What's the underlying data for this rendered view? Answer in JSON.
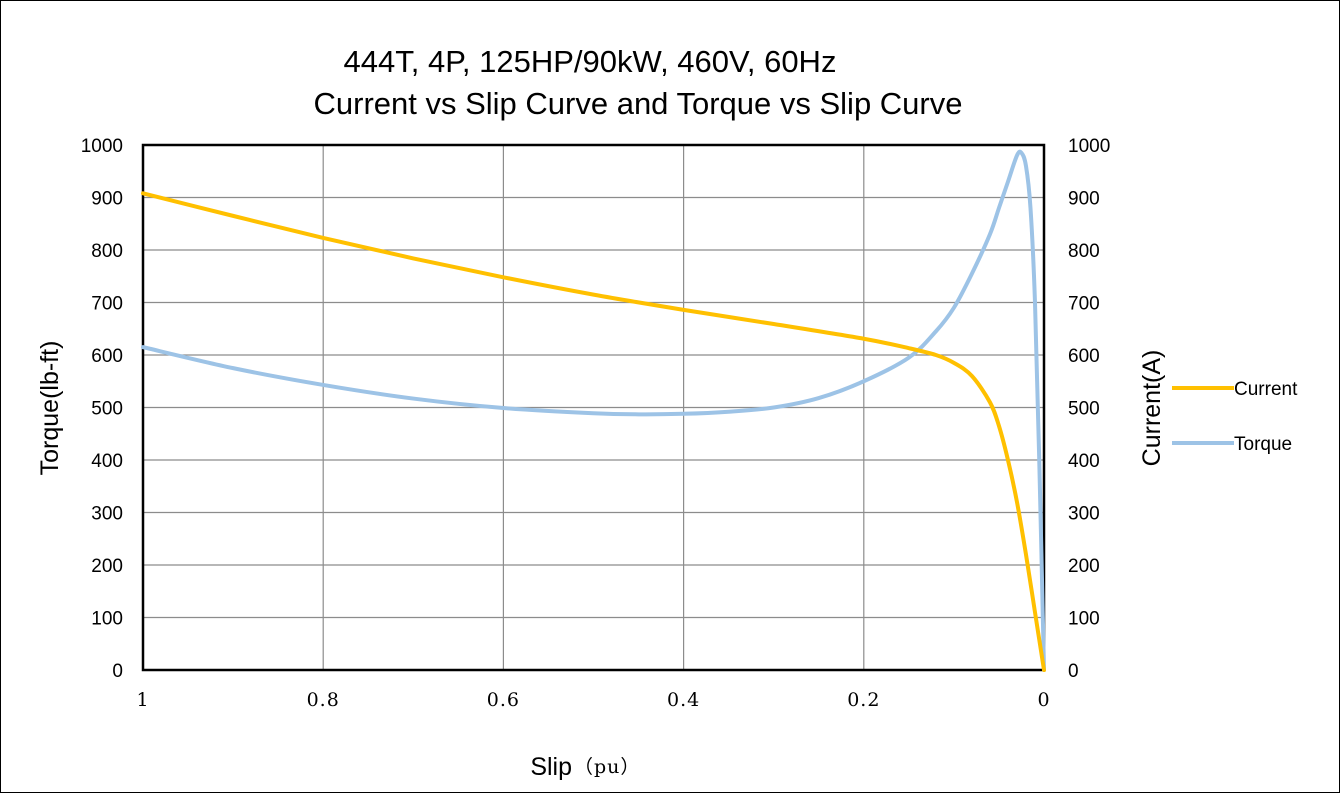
{
  "chart_data": {
    "type": "line",
    "title": "444T, 4P, 125HP/90kW, 460V, 60Hz",
    "subtitle": "Current vs Slip Curve and Torque vs Slip Curve",
    "xlabel": "Slip",
    "xlabel_unit": "（pu）",
    "ylabel_left": "Torque(lb-ft)",
    "ylabel_right": "Current(A)",
    "x_reversed": true,
    "xlim": [
      0,
      1
    ],
    "ylim_left": [
      0,
      1000
    ],
    "ylim_right": [
      0,
      1000
    ],
    "x_ticks": [
      "1",
      "0.8",
      "0.6",
      "0.4",
      "0.2",
      "0"
    ],
    "x_tick_values": [
      1,
      0.8,
      0.6,
      0.4,
      0.2,
      0
    ],
    "y_ticks": [
      "0",
      "100",
      "200",
      "300",
      "400",
      "500",
      "600",
      "700",
      "800",
      "900",
      "1000"
    ],
    "y_tick_values": [
      0,
      100,
      200,
      300,
      400,
      500,
      600,
      700,
      800,
      900,
      1000
    ],
    "grid": true,
    "legend_position": "right",
    "series": [
      {
        "name": "Current",
        "axis": "right",
        "color": "#ffc000",
        "x": [
          1.0,
          0.9,
          0.8,
          0.7,
          0.6,
          0.5,
          0.4,
          0.3,
          0.2,
          0.15,
          0.12,
          0.1,
          0.08,
          0.06,
          0.05,
          0.04,
          0.03,
          0.02,
          0.01,
          0.0
        ],
        "y": [
          908,
          865,
          823,
          784,
          748,
          715,
          686,
          659,
          631,
          613,
          600,
          585,
          560,
          510,
          465,
          400,
          320,
          220,
          110,
          0
        ]
      },
      {
        "name": "Torque",
        "axis": "left",
        "color": "#9dc3e6",
        "x": [
          1.0,
          0.9,
          0.8,
          0.7,
          0.6,
          0.5,
          0.45,
          0.4,
          0.35,
          0.3,
          0.25,
          0.2,
          0.15,
          0.12,
          0.1,
          0.08,
          0.06,
          0.05,
          0.04,
          0.03,
          0.025,
          0.02,
          0.015,
          0.01,
          0.005,
          0.0
        ],
        "y": [
          615,
          575,
          543,
          517,
          499,
          489,
          487,
          488,
          492,
          500,
          518,
          550,
          595,
          645,
          690,
          755,
          830,
          880,
          930,
          980,
          985,
          960,
          880,
          700,
          380,
          0
        ]
      }
    ]
  }
}
